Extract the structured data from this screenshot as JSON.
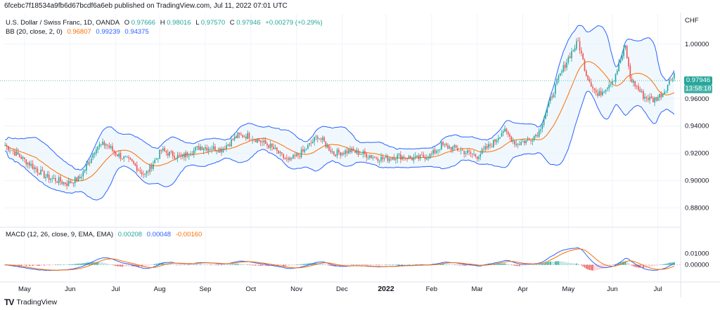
{
  "header": {
    "text": "6fcebc7f18534a9fb6d67bcdf6a6eb published on TradingView.com, Jul 11, 2022 07:01 UTC"
  },
  "symbol": {
    "name": "U.S. Dollar / Swiss Franc, 1D, OANDA",
    "o_label": "O",
    "o": "0.97666",
    "h_label": "H",
    "h": "0.98016",
    "l_label": "L",
    "l": "0.97570",
    "c_label": "C",
    "c": "0.97946",
    "change": "+0.00279 (+0.29%)"
  },
  "bb_legend": {
    "label": "BB (20, close, 2, 0)",
    "basis": "0.96807",
    "upper": "0.99239",
    "lower": "0.94375"
  },
  "macd_legend": {
    "label": "MACD (12, 26, close, 9, EMA, EMA)",
    "hist": "0.00208",
    "macd": "0.00048",
    "signal": "-0.00160"
  },
  "price_axis": {
    "unit": "CHF"
  },
  "last_price": {
    "value": "0.97946",
    "countdown": "13:58:18"
  },
  "colors": {
    "up": "#26a69a",
    "down": "#ef5350",
    "bb_line": "#2962ff",
    "basis": "#ff6d00",
    "bb_fill": "#e3f2fd",
    "macd": "#2962ff",
    "signal": "#ff6d00"
  },
  "footer": {
    "brand": "TradingView"
  },
  "chart_data": {
    "type": "candlestick",
    "title": "U.S. Dollar / Swiss Franc, 1D, OANDA",
    "price_ticks": [
      0.88,
      0.9,
      0.92,
      0.94,
      0.96,
      1.0
    ],
    "price_tick_labels": [
      "0.88000",
      "0.90000",
      "0.92000",
      "0.94000",
      "0.96000",
      "1.00000"
    ],
    "ylim": [
      0.868,
      1.022
    ],
    "macd_ticks": [
      0.01,
      0.0
    ],
    "macd_tick_labels": [
      "0.01000",
      "0.00000"
    ],
    "macd_ylim": [
      -0.0125,
      0.0255
    ],
    "months": [
      "May",
      "Jun",
      "Jul",
      "Aug",
      "Sep",
      "Oct",
      "Nov",
      "Dec",
      "2022",
      "Feb",
      "Mar",
      "Apr",
      "May",
      "Jun",
      "Jul"
    ],
    "close_keypoints": [
      [
        0,
        0.926
      ],
      [
        12,
        0.915
      ],
      [
        25,
        0.903
      ],
      [
        38,
        0.898
      ],
      [
        46,
        0.902
      ],
      [
        52,
        0.915
      ],
      [
        56,
        0.925
      ],
      [
        62,
        0.927
      ],
      [
        68,
        0.92
      ],
      [
        78,
        0.913
      ],
      [
        86,
        0.904
      ],
      [
        96,
        0.922
      ],
      [
        108,
        0.917
      ],
      [
        120,
        0.925
      ],
      [
        133,
        0.923
      ],
      [
        143,
        0.933
      ],
      [
        150,
        0.933
      ],
      [
        163,
        0.925
      ],
      [
        174,
        0.914
      ],
      [
        184,
        0.922
      ],
      [
        192,
        0.933
      ],
      [
        202,
        0.92
      ],
      [
        212,
        0.922
      ],
      [
        222,
        0.919
      ],
      [
        232,
        0.916
      ],
      [
        242,
        0.918
      ],
      [
        252,
        0.916
      ],
      [
        262,
        0.919
      ],
      [
        268,
        0.926
      ],
      [
        278,
        0.923
      ],
      [
        290,
        0.918
      ],
      [
        300,
        0.928
      ],
      [
        306,
        0.937
      ],
      [
        314,
        0.927
      ],
      [
        322,
        0.93
      ],
      [
        328,
        0.936
      ],
      [
        332,
        0.95
      ],
      [
        340,
        0.975
      ],
      [
        346,
        0.99
      ],
      [
        352,
        1.002
      ],
      [
        357,
        0.978
      ],
      [
        364,
        0.962
      ],
      [
        374,
        0.975
      ],
      [
        381,
        0.998
      ],
      [
        384,
        0.975
      ],
      [
        392,
        0.962
      ],
      [
        398,
        0.959
      ],
      [
        404,
        0.964
      ],
      [
        411,
        0.979
      ]
    ],
    "bb_period": 20,
    "bb_mult": 2,
    "macd_params": [
      12,
      26,
      9
    ]
  }
}
